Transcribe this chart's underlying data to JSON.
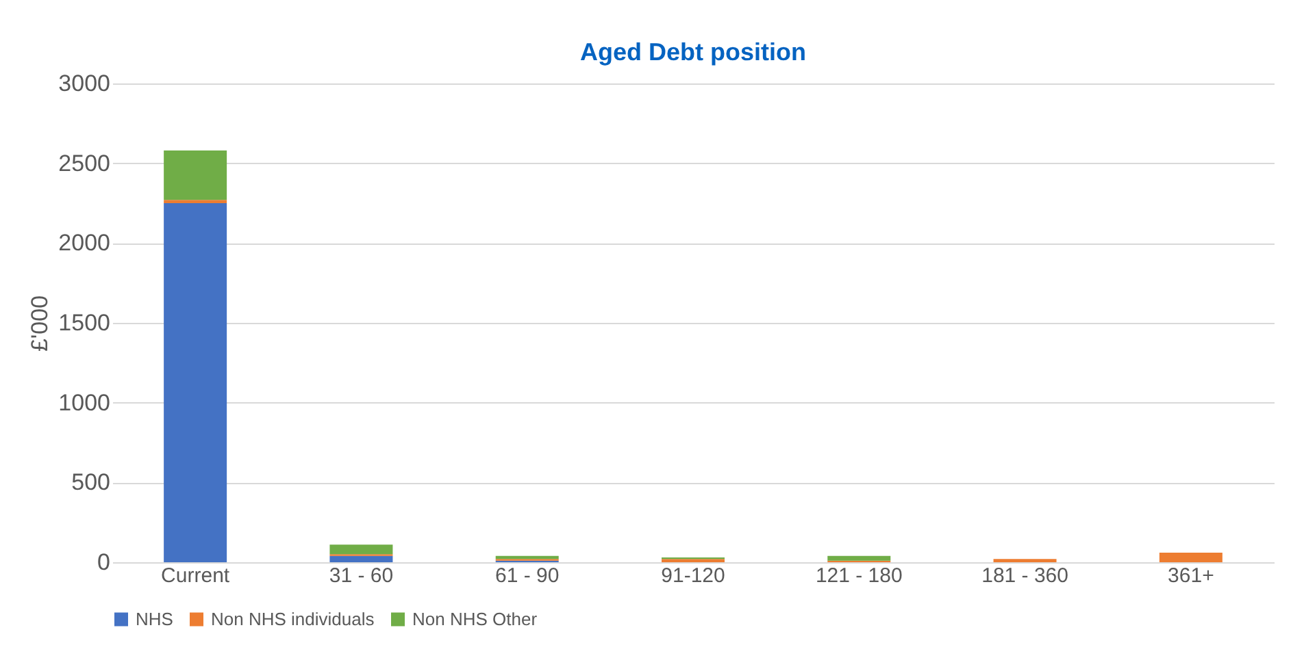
{
  "chart_data": {
    "type": "bar",
    "stacked": true,
    "title": "Aged Debt position",
    "ylabel": "£'000",
    "categories": [
      "Current",
      "31 - 60",
      "61 - 90",
      "91-120",
      "121 - 180",
      "181 - 360",
      "361+"
    ],
    "series": [
      {
        "name": "NHS",
        "color": "#4472c4",
        "values": [
          2250,
          40,
          10,
          0,
          0,
          0,
          0
        ]
      },
      {
        "name": "Non NHS individuals",
        "color": "#ed7d31",
        "values": [
          20,
          10,
          10,
          20,
          10,
          20,
          60
        ]
      },
      {
        "name": "Non NHS Other",
        "color": "#70ad47",
        "values": [
          310,
          60,
          20,
          10,
          30,
          0,
          0
        ]
      }
    ],
    "ylim": [
      0,
      3000
    ],
    "yticks": [
      0,
      500,
      1000,
      1500,
      2000,
      2500,
      3000
    ],
    "grid": "y",
    "legend": "bottom"
  }
}
